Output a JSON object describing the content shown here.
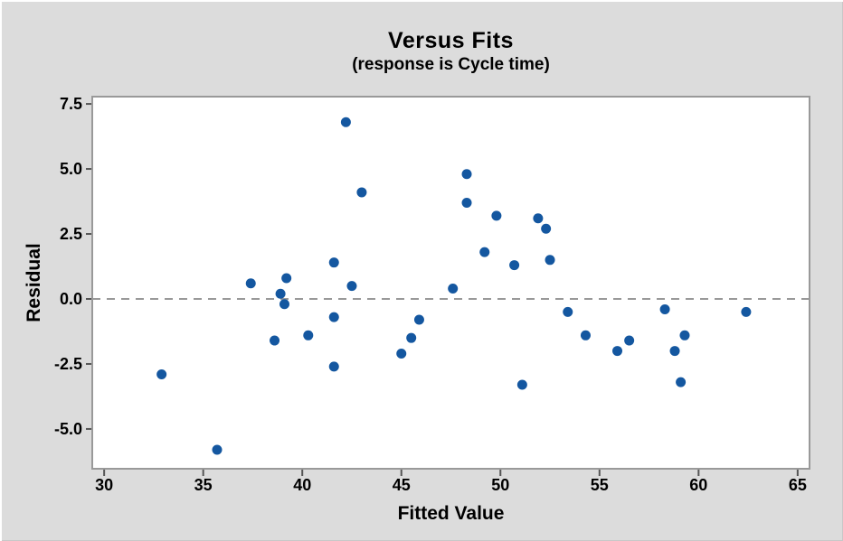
{
  "window": {
    "background_color": "#dcdcdc"
  },
  "chart_data": {
    "type": "scatter",
    "title": "Versus Fits",
    "subtitle": "(response is Cycle time)",
    "xlabel": "Fitted Value",
    "ylabel": "Residual",
    "xlim": [
      29.4,
      65.6
    ],
    "ylim": [
      -6.53,
      7.78
    ],
    "grid": false,
    "legend_position": "none",
    "x_ticks": [
      {
        "v": 30,
        "label": "30"
      },
      {
        "v": 35,
        "label": "35"
      },
      {
        "v": 40,
        "label": "40"
      },
      {
        "v": 45,
        "label": "45"
      },
      {
        "v": 50,
        "label": "50"
      },
      {
        "v": 55,
        "label": "55"
      },
      {
        "v": 60,
        "label": "60"
      },
      {
        "v": 65,
        "label": "65"
      }
    ],
    "y_ticks": [
      {
        "v": 7.5,
        "label": "7.5"
      },
      {
        "v": 5.0,
        "label": "5.0"
      },
      {
        "v": 2.5,
        "label": "2.5"
      },
      {
        "v": 0.0,
        "label": "0.0"
      },
      {
        "v": -2.5,
        "label": "-2.5"
      },
      {
        "v": -5.0,
        "label": "-5.0"
      }
    ],
    "reference_line_y": 0,
    "colors": {
      "point": "#1457a0",
      "plot_background": "#ffffff",
      "frame": "#999999",
      "reference_line": "#999999",
      "tick": "#555555"
    },
    "points": [
      [
        32.9,
        -2.9
      ],
      [
        35.7,
        -5.8
      ],
      [
        37.4,
        0.6
      ],
      [
        38.6,
        -1.6
      ],
      [
        38.9,
        0.2
      ],
      [
        39.1,
        -0.2
      ],
      [
        39.2,
        0.8
      ],
      [
        40.3,
        -1.4
      ],
      [
        41.6,
        1.4
      ],
      [
        41.6,
        -0.7
      ],
      [
        41.6,
        -2.6
      ],
      [
        42.2,
        6.8
      ],
      [
        42.5,
        0.5
      ],
      [
        43.0,
        4.1
      ],
      [
        45.0,
        -2.1
      ],
      [
        45.5,
        -1.5
      ],
      [
        45.9,
        -0.8
      ],
      [
        47.6,
        0.4
      ],
      [
        48.3,
        4.8
      ],
      [
        48.3,
        3.7
      ],
      [
        49.2,
        1.8
      ],
      [
        49.8,
        3.2
      ],
      [
        50.7,
        1.3
      ],
      [
        51.1,
        -3.3
      ],
      [
        51.9,
        3.1
      ],
      [
        52.3,
        2.7
      ],
      [
        52.5,
        1.5
      ],
      [
        53.4,
        -0.5
      ],
      [
        54.3,
        -1.4
      ],
      [
        55.9,
        -2.0
      ],
      [
        56.5,
        -1.6
      ],
      [
        58.3,
        -0.4
      ],
      [
        58.8,
        -2.0
      ],
      [
        59.1,
        -3.2
      ],
      [
        59.3,
        -1.4
      ],
      [
        62.4,
        -0.5
      ]
    ]
  }
}
